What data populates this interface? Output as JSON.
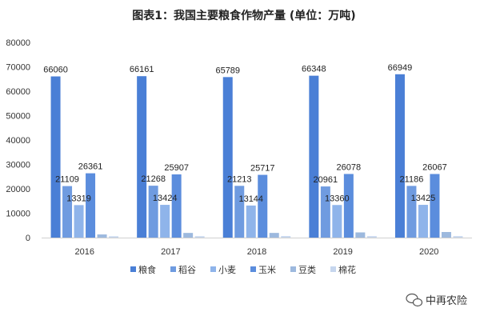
{
  "page_title": "图表1：我国主要粮食作物产量 (单位：万吨)",
  "watermark": {
    "text": "中再农险",
    "icon": "wechat-icon"
  },
  "chart_data": {
    "type": "bar",
    "title": "图表1：我国主要粮食作物产量 (单位：万吨)",
    "categories": [
      "2016",
      "2017",
      "2018",
      "2019",
      "2020"
    ],
    "series": [
      {
        "name": "粮食",
        "color": "#4a7fd6",
        "values": [
          66060,
          66161,
          65789,
          66348,
          66949
        ],
        "labeled": true
      },
      {
        "name": "稻谷",
        "color": "#6f9be0",
        "values": [
          21109,
          21268,
          21213,
          20961,
          21186
        ],
        "labeled": true
      },
      {
        "name": "小麦",
        "color": "#8fb4ea",
        "values": [
          13319,
          13424,
          13144,
          13360,
          13425
        ],
        "labeled": true
      },
      {
        "name": "玉米",
        "color": "#5b8ddd",
        "values": [
          26361,
          25907,
          25717,
          26078,
          26067
        ],
        "labeled": true
      },
      {
        "name": "豆类",
        "color": "#9db9de",
        "values": [
          1294,
          1917,
          1920,
          2132,
          2288
        ],
        "labeled": false
      },
      {
        "name": "棉花",
        "color": "#c6d6ee",
        "values": [
          534,
          565,
          610,
          589,
          591
        ],
        "labeled": false
      }
    ],
    "ylim": [
      0,
      80000
    ],
    "yticks": [
      "0",
      "10000",
      "20000",
      "30000",
      "40000",
      "50000",
      "60000",
      "70000",
      "80000"
    ],
    "grid": false,
    "legend_position": "bottom"
  }
}
